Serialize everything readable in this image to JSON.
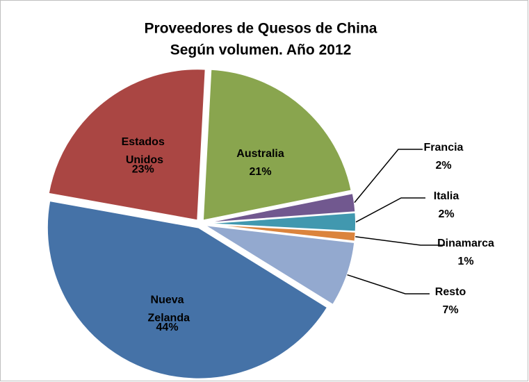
{
  "chart_data": {
    "type": "pie",
    "title": "Proveedores de Quesos de China",
    "subtitle": "Según volumen. Año 2012",
    "categories": [
      "Australia",
      "Francia",
      "Italia",
      "Dinamarca",
      "Resto",
      "Nueva Zelanda",
      "Estados Unidos"
    ],
    "values": [
      21,
      2,
      2,
      1,
      7,
      44,
      23
    ],
    "value_labels": [
      "21%",
      "2%",
      "2%",
      "1%",
      "7%",
      "44%",
      "23%"
    ],
    "colors": [
      "#89a54e",
      "#71588f",
      "#4198af",
      "#db843d",
      "#93a9cf",
      "#4572a7",
      "#aa4643"
    ]
  }
}
